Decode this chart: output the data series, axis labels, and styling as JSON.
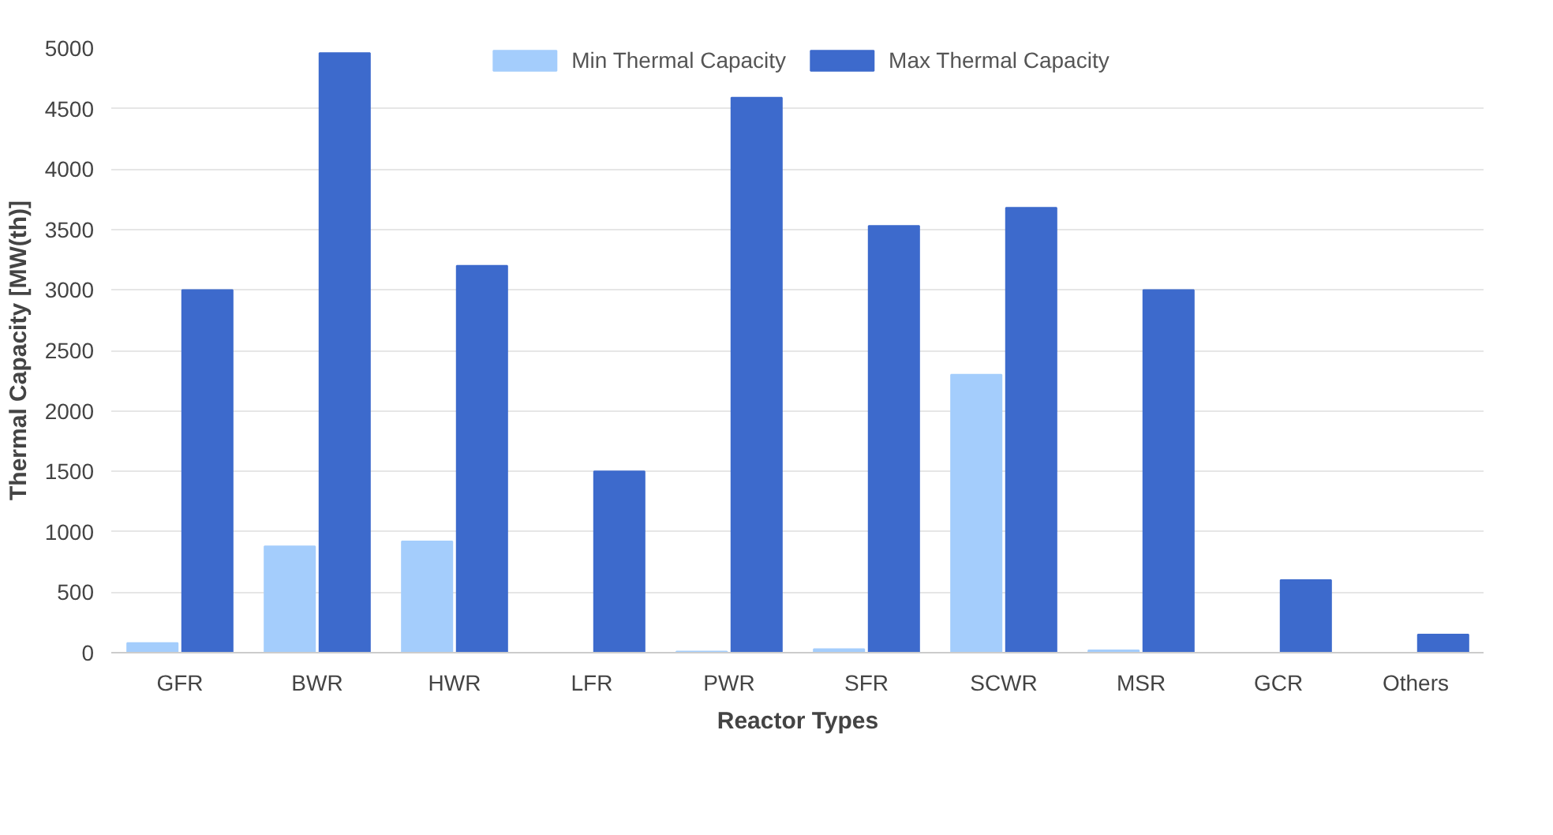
{
  "chart_data": {
    "type": "bar",
    "xlabel": "Reactor Types",
    "ylabel": "Thermal Capacity [MW(th)]",
    "categories": [
      "GFR",
      "BWR",
      "HWR",
      "LFR",
      "PWR",
      "SFR",
      "SCWR",
      "MSR",
      "GCR",
      "Others"
    ],
    "series": [
      {
        "name": "Min Thermal Capacity",
        "color": "#a4cdfc",
        "values": [
          80,
          880,
          920,
          0,
          10,
          30,
          2300,
          20,
          0,
          0
        ]
      },
      {
        "name": "Max Thermal Capacity",
        "color": "#3d6acc",
        "values": [
          3000,
          4960,
          3200,
          1500,
          4590,
          3530,
          3680,
          3000,
          600,
          150
        ]
      }
    ],
    "ylim": [
      0,
      5000
    ],
    "yticks": [
      0,
      500,
      1000,
      1500,
      2000,
      2500,
      3000,
      3500,
      4000,
      4500,
      5000
    ],
    "grid": "y",
    "legend": "top"
  }
}
